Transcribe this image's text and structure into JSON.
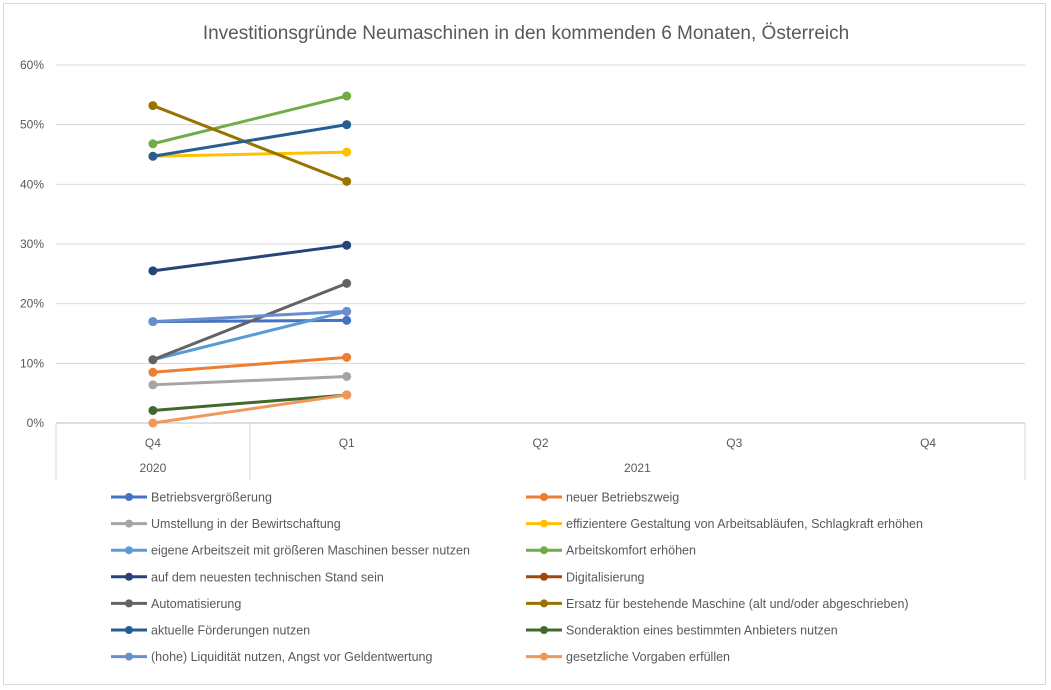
{
  "chart_data": {
    "type": "line",
    "title": "Investitionsgründe Neumaschinen in den kommenden 6 Monaten, Österreich",
    "xlabel": "",
    "ylabel": "",
    "ylim": [
      0,
      0.6
    ],
    "y_ticks": [
      "0%",
      "10%",
      "20%",
      "30%",
      "40%",
      "50%",
      "60%"
    ],
    "categories": [
      "Q4",
      "Q1",
      "Q2",
      "Q3",
      "Q4"
    ],
    "category_groups": [
      {
        "label": "2020",
        "span": 1
      },
      {
        "label": "2021",
        "span": 4
      }
    ],
    "grid": true,
    "legend_position": "bottom",
    "series": [
      {
        "name": "Betriebsvergrößerung",
        "color": "#4472C4",
        "values": [
          0.17,
          0.172,
          null,
          null,
          null
        ]
      },
      {
        "name": "neuer Betriebszweig",
        "color": "#ED7D31",
        "values": [
          0.085,
          0.11,
          null,
          null,
          null
        ]
      },
      {
        "name": "Umstellung in der Bewirtschaftung",
        "color": "#A5A5A5",
        "values": [
          0.064,
          0.078,
          null,
          null,
          null
        ]
      },
      {
        "name": "effizientere Gestaltung von Arbeitsabläufen, Schlagkraft erhöhen",
        "color": "#FFC000",
        "values": [
          0.447,
          0.454,
          null,
          null,
          null
        ]
      },
      {
        "name": "eigene Arbeitszeit mit größeren Maschinen besser nutzen",
        "color": "#5B9BD5",
        "values": [
          0.106,
          0.187,
          null,
          null,
          null
        ]
      },
      {
        "name": "Arbeitskomfort erhöhen",
        "color": "#70AD47",
        "values": [
          0.468,
          0.548,
          null,
          null,
          null
        ]
      },
      {
        "name": "auf dem neuesten technischen Stand sein",
        "color": "#264478",
        "values": [
          0.255,
          0.298,
          null,
          null,
          null
        ]
      },
      {
        "name": "Digitalisierung",
        "color": "#9E480E",
        "values": [
          null,
          null,
          null,
          null,
          null
        ]
      },
      {
        "name": "Automatisierung",
        "color": "#636363",
        "values": [
          0.106,
          0.234,
          null,
          null,
          null
        ]
      },
      {
        "name": "Ersatz für bestehende Maschine (alt und/oder abgeschrieben)",
        "color": "#997300",
        "values": [
          0.532,
          0.405,
          null,
          null,
          null
        ]
      },
      {
        "name": "aktuelle Förderungen nutzen",
        "color": "#255E91",
        "values": [
          0.447,
          0.5,
          null,
          null,
          null
        ]
      },
      {
        "name": "Sonderaktion eines bestimmten Anbieters nutzen",
        "color": "#43682B",
        "values": [
          0.021,
          0.047,
          null,
          null,
          null
        ]
      },
      {
        "name": "(hohe) Liquidität nutzen, Angst vor Geldentwertung",
        "color": "#698ED0",
        "values": [
          0.17,
          0.187,
          null,
          null,
          null
        ]
      },
      {
        "name": "gesetzliche Vorgaben erfüllen",
        "color": "#F1975A",
        "values": [
          0.0,
          0.047,
          null,
          null,
          null
        ]
      }
    ]
  }
}
